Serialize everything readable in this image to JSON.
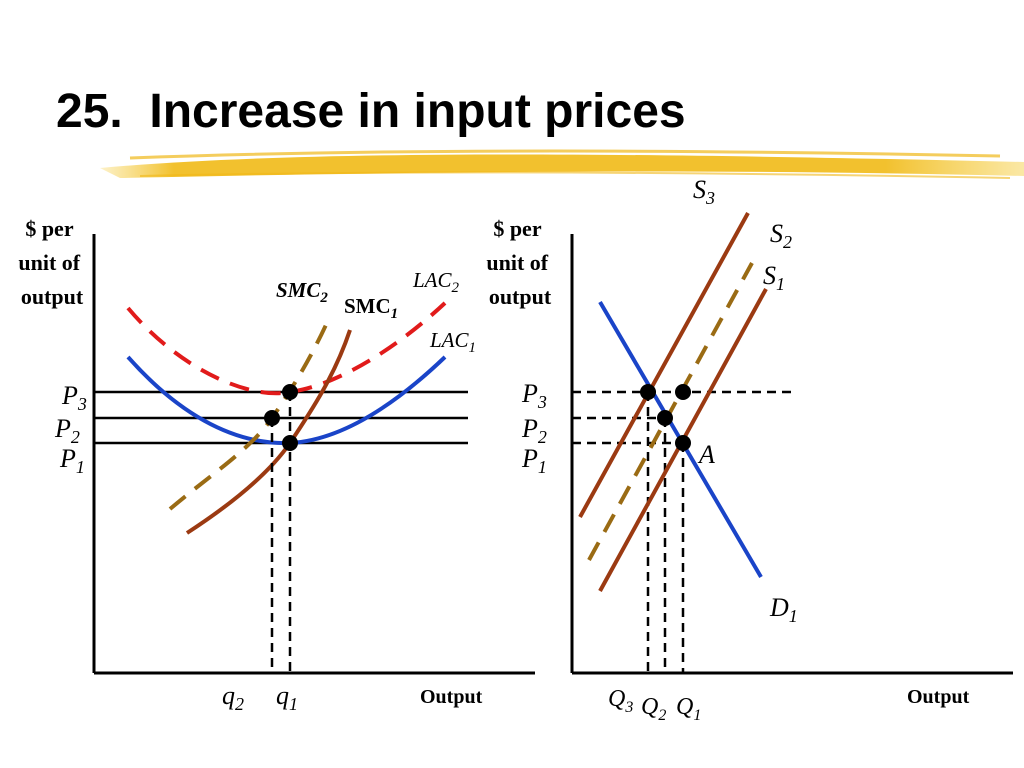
{
  "slide": {
    "title": "25.  Increase in input prices"
  },
  "colors": {
    "highlight": "#f2c12e",
    "lac_dashed": "#e11b1b",
    "lac_solid": "#1a44c8",
    "smc_dashed": "#9a6b14",
    "supply_solid": "#9b3a12",
    "demand": "#1a44c8",
    "axis": "#000000"
  },
  "left_panel": {
    "y_axis_label": [
      "$ per",
      "unit of",
      "output"
    ],
    "x_axis_label": "Output",
    "price_labels": [
      {
        "main": "P",
        "sub": "3"
      },
      {
        "main": "P",
        "sub": "2"
      },
      {
        "main": "P",
        "sub": "1"
      }
    ],
    "quantity_labels": [
      {
        "main": "q",
        "sub": "2"
      },
      {
        "main": "q",
        "sub": "1"
      }
    ],
    "curve_labels": {
      "smc2": {
        "main": "SMC",
        "sub": "2"
      },
      "smc1": {
        "main": "SMC",
        "sub": "1"
      },
      "lac2": {
        "main": "LAC",
        "sub": "2"
      },
      "lac1": {
        "main": "LAC",
        "sub": "1"
      }
    }
  },
  "right_panel": {
    "y_axis_label": [
      "$ per",
      "unit of",
      "output"
    ],
    "x_axis_label": "Output",
    "price_labels": [
      {
        "main": "P",
        "sub": "3"
      },
      {
        "main": "P",
        "sub": "2"
      },
      {
        "main": "P",
        "sub": "1"
      }
    ],
    "quantity_labels": [
      {
        "main": "Q",
        "sub": "3"
      },
      {
        "main": "Q",
        "sub": "2"
      },
      {
        "main": "Q",
        "sub": "1"
      }
    ],
    "curve_labels": {
      "s3": {
        "main": "S",
        "sub": "3"
      },
      "s2": {
        "main": "S",
        "sub": "2"
      },
      "s1": {
        "main": "S",
        "sub": "1"
      },
      "d1": {
        "main": "D",
        "sub": "1"
      }
    },
    "point_label": "A"
  }
}
